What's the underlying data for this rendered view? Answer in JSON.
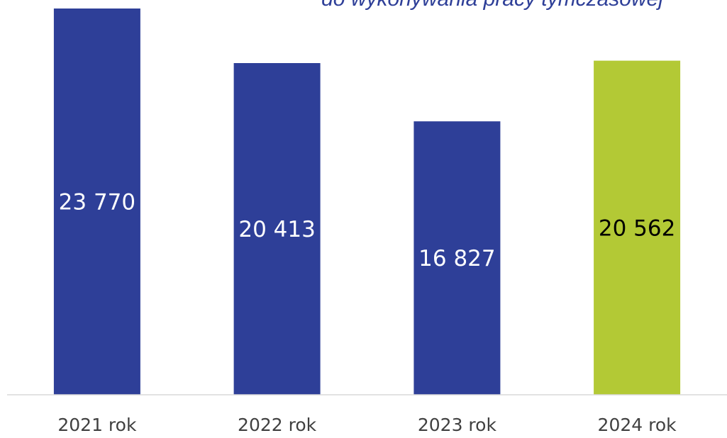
{
  "chart_data": {
    "type": "bar",
    "title": "do wykonywania pracy tymczasowej",
    "xlabel": "",
    "ylabel": "",
    "categories": [
      "2021 rok",
      "2022 rok",
      "2023 rok",
      "2024 rok"
    ],
    "values": [
      23770,
      20413,
      16827,
      20562
    ],
    "value_labels": [
      "23 770",
      "20 413",
      "16 827",
      "20 562"
    ],
    "ylim": [
      0,
      23770
    ],
    "grid": false,
    "legend": "none",
    "colors": {
      "default_bar": "#2e3f98",
      "highlight_bar": "#b3c935",
      "default_label": "#ffffff",
      "highlight_label": "#000000",
      "baseline": "#d9d9d9",
      "title": "#2e3f98"
    },
    "highlight_index": 3
  }
}
